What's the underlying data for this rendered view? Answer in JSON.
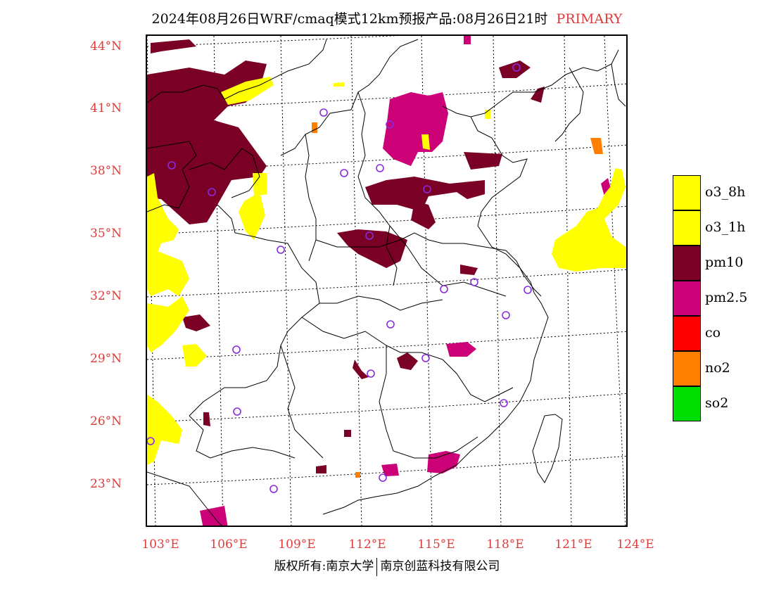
{
  "title": {
    "main": "2024年08月26日WRF/cmaq模式12km预报产品:08月26日21时",
    "tag": "PRIMARY"
  },
  "colors": {
    "label_red": "#e03b3b",
    "o3_8h": "#ffff00",
    "o3_1h": "#ffff00",
    "pm10": "#7a0026",
    "pm2_5": "#cc0077",
    "co": "#ff0000",
    "no2": "#ff7f00",
    "so2": "#00dd00",
    "station": "#8a2be2"
  },
  "latitude_labels": [
    "44°N",
    "41°N",
    "38°N",
    "35°N",
    "32°N",
    "29°N",
    "26°N",
    "23°N"
  ],
  "longitude_labels": [
    "103°E",
    "106°E",
    "109°E",
    "112°E",
    "115°E",
    "118°E",
    "121°E",
    "124°E"
  ],
  "legend": [
    {
      "label": "o3_8h",
      "color": "#ffff00"
    },
    {
      "label": "o3_1h",
      "color": "#ffff00"
    },
    {
      "label": "pm10",
      "color": "#7a0026"
    },
    {
      "label": "pm2.5",
      "color": "#cc0077"
    },
    {
      "label": "co",
      "color": "#ff0000"
    },
    {
      "label": "no2",
      "color": "#ff7f00"
    },
    {
      "label": "so2",
      "color": "#00dd00"
    }
  ],
  "copyright": {
    "left": "版权所有:南京大学",
    "right": "南京创蓝科技有限公司"
  }
}
